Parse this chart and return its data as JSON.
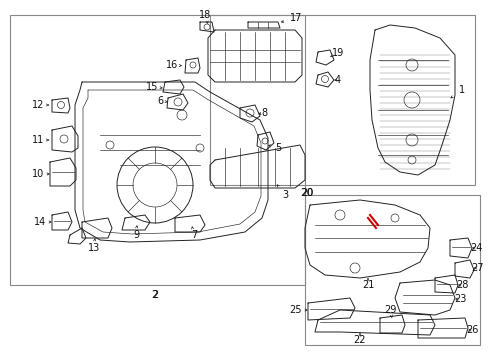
{
  "bg_color": "#ffffff",
  "border_color": "#777777",
  "line_color": "#222222",
  "highlight_color": "#cc0000",
  "label_fontsize": 7,
  "label_color": "#111111",
  "fig_width": 4.89,
  "fig_height": 3.6,
  "dpi": 100
}
